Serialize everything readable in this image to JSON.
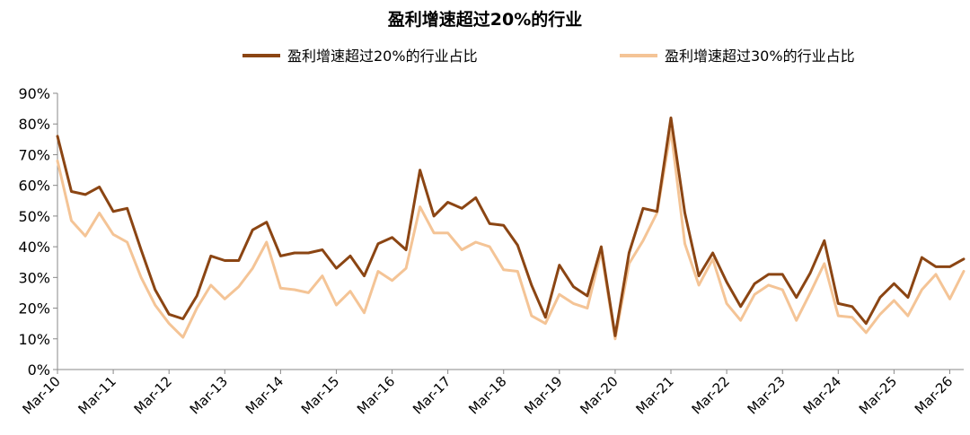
{
  "chart_data": {
    "type": "line",
    "title": "盈利增速超过20%的行业",
    "legend_position": "top",
    "ylim": [
      0,
      90
    ],
    "y_ticks": [
      "0%",
      "10%",
      "20%",
      "30%",
      "40%",
      "50%",
      "60%",
      "70%",
      "80%",
      "90%"
    ],
    "x_ticks": [
      "Mar-10",
      "Mar-11",
      "Mar-12",
      "Mar-13",
      "Mar-14",
      "Mar-15",
      "Mar-16",
      "Mar-17",
      "Mar-18",
      "Mar-19",
      "Mar-20",
      "Mar-21",
      "Mar-22",
      "Mar-23",
      "Mar-24",
      "Mar-25",
      "Mar-26"
    ],
    "x_tick_quarter_index": [
      0,
      4,
      8,
      12,
      16,
      20,
      24,
      28,
      32,
      36,
      40,
      44,
      48,
      52,
      56,
      60,
      64
    ],
    "series": [
      {
        "name": "盈利增速超过20%的行业占比",
        "color": "#8B4513",
        "values": [
          76,
          58,
          57,
          59.5,
          51.5,
          52.5,
          39,
          26,
          18,
          16.5,
          24,
          37,
          35.5,
          35.5,
          45.5,
          48,
          37,
          38,
          38,
          39,
          33,
          37,
          30.5,
          41,
          43,
          39,
          65,
          50,
          54.5,
          52.5,
          56,
          47.5,
          47,
          40.5,
          27.5,
          17,
          34,
          27,
          24,
          40,
          11,
          38,
          52.5,
          51.5,
          82,
          51,
          30.5,
          38,
          28.5,
          20.5,
          28,
          31,
          31,
          23.5,
          31.5,
          42,
          21.5,
          20.5,
          15,
          23.5,
          28,
          23.5,
          36.5,
          33.5,
          33.5,
          36
        ]
      },
      {
        "name": "盈利增速超过30%的行业占比",
        "color": "#F4C496",
        "values": [
          68,
          48.5,
          43.5,
          51,
          44,
          41.5,
          30,
          21,
          15,
          10.5,
          20,
          27.5,
          23,
          27,
          33,
          41.5,
          26.5,
          26,
          25,
          30.5,
          21,
          25.5,
          18.5,
          32,
          29,
          33,
          53,
          44.5,
          44.5,
          39,
          41.5,
          40,
          32.5,
          32,
          17.5,
          15,
          24.5,
          21.5,
          20,
          38.5,
          10,
          34.5,
          42,
          51,
          78,
          41,
          27.5,
          36,
          21.5,
          16,
          24.5,
          27.5,
          26,
          16,
          25,
          34.5,
          17.5,
          17,
          12,
          18,
          22.5,
          17.5,
          26,
          31,
          23,
          32
        ]
      }
    ]
  }
}
